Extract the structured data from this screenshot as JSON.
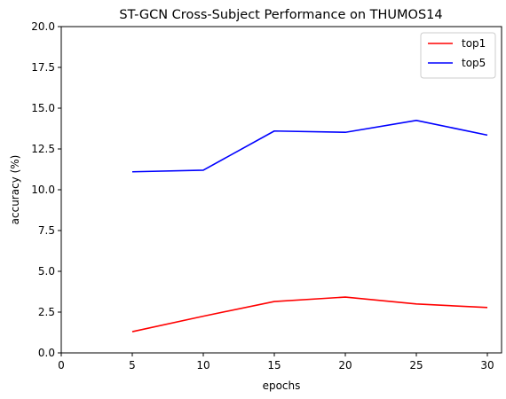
{
  "chart_data": {
    "type": "line",
    "title": "ST-GCN Cross-Subject Performance on THUMOS14",
    "xlabel": "epochs",
    "ylabel": "accuracy (%)",
    "xlim": [
      0,
      31
    ],
    "ylim": [
      0,
      20
    ],
    "xticks": [
      0,
      5,
      10,
      15,
      20,
      25,
      30
    ],
    "xtick_labels": [
      "0",
      "5",
      "10",
      "15",
      "20",
      "25",
      "30"
    ],
    "yticks": [
      0,
      2.5,
      5,
      7.5,
      10,
      12.5,
      15,
      17.5,
      20
    ],
    "ytick_labels": [
      "0.0",
      "2.5",
      "5.0",
      "7.5",
      "10.0",
      "12.5",
      "15.0",
      "17.5",
      "20.0"
    ],
    "grid": false,
    "legend_position": "top-right",
    "x": [
      5,
      10,
      15,
      20,
      25,
      30
    ],
    "series": [
      {
        "name": "top1",
        "color": "#ff0000",
        "values": [
          1.3,
          2.25,
          3.15,
          3.42,
          3.0,
          2.78
        ]
      },
      {
        "name": "top5",
        "color": "#0000ff",
        "values": [
          11.1,
          11.2,
          13.6,
          13.52,
          14.25,
          13.35
        ]
      }
    ]
  }
}
